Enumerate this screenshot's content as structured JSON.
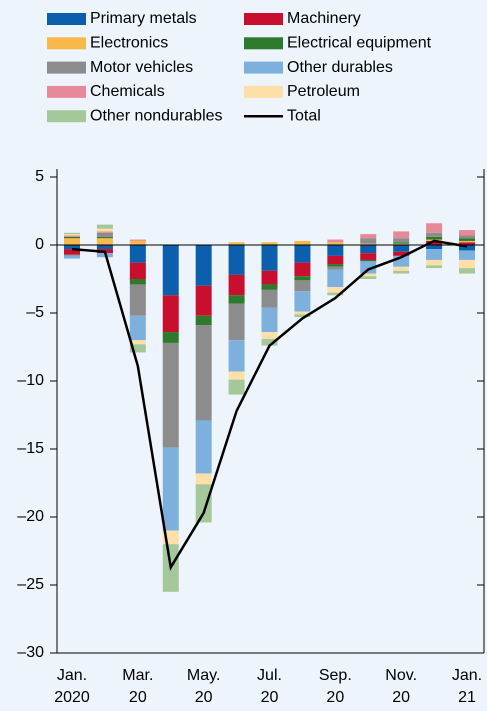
{
  "chart_data": {
    "type": "bar",
    "stacked": true,
    "categories": [
      [
        "Jan.",
        "2020"
      ],
      null,
      [
        "Mar.",
        "20"
      ],
      null,
      [
        "May.",
        "20"
      ],
      null,
      [
        "Jul.",
        "20"
      ],
      null,
      [
        "Sep.",
        "20"
      ],
      null,
      [
        "Nov.",
        "20"
      ],
      null,
      [
        "Jan.",
        "21"
      ]
    ],
    "ylim": [
      -30,
      5
    ],
    "yticks": [
      5,
      0,
      {
        "value": -5,
        "label": "–5"
      },
      {
        "value": -10,
        "label": "–10"
      },
      {
        "value": -15,
        "label": "–15"
      },
      {
        "value": -20,
        "label": "–20"
      },
      {
        "value": -25,
        "label": "–25"
      },
      {
        "value": -30,
        "label": "–30"
      }
    ],
    "series": [
      {
        "name": "Primary metals",
        "color": "#0b5fad",
        "values": [
          -0.3,
          -0.3,
          -1.3,
          -3.7,
          -3.0,
          -2.2,
          -1.9,
          -1.3,
          -0.8,
          -0.6,
          -0.5,
          -0.3,
          -0.4
        ]
      },
      {
        "name": "Machinery",
        "color": "#c8102e",
        "values": [
          -0.4,
          -0.3,
          -1.2,
          -2.7,
          -2.2,
          -1.5,
          -1.0,
          -1.0,
          -0.6,
          -0.5,
          -0.3,
          0.3,
          0.2
        ]
      },
      {
        "name": "Electronics",
        "color": "#f8b84a",
        "values": [
          0.5,
          0.5,
          0.3,
          0,
          0,
          0.2,
          0.2,
          0.3,
          0.2,
          0.1,
          0.1,
          0.1,
          0.1
        ]
      },
      {
        "name": "Electrical equipment",
        "color": "#2d7a2d",
        "values": [
          0.1,
          0.1,
          -0.4,
          -0.8,
          -0.7,
          -0.6,
          -0.4,
          -0.3,
          -0.2,
          -0.1,
          0.1,
          0.2,
          0.2
        ]
      },
      {
        "name": "Motor vehicles",
        "color": "#8c8c8c",
        "values": [
          -0.1,
          0.3,
          -2.3,
          -7.7,
          -7.0,
          -2.7,
          -1.3,
          -0.8,
          -0.2,
          0.4,
          0.3,
          0.3,
          0.2
        ]
      },
      {
        "name": "Other durables",
        "color": "#7eb0de",
        "values": [
          -0.2,
          -0.3,
          -1.8,
          -6.1,
          -3.9,
          -2.3,
          -1.8,
          -1.5,
          -1.3,
          -0.9,
          -0.8,
          -0.8,
          -0.7
        ]
      },
      {
        "name": "Chemicals",
        "color": "#e68a99",
        "values": [
          0.1,
          0.1,
          0.1,
          0,
          0,
          0,
          0,
          0,
          0.2,
          0.3,
          0.5,
          0.7,
          0.4
        ]
      },
      {
        "name": "Petroleum",
        "color": "#fde0a8",
        "values": [
          0.1,
          0.2,
          -0.3,
          -1.0,
          -0.8,
          -0.6,
          -0.5,
          -0.2,
          -0.4,
          -0.2,
          -0.3,
          -0.4,
          -0.6
        ]
      },
      {
        "name": "Other nondurables",
        "color": "#a4c89a",
        "values": [
          0.1,
          0.3,
          -0.6,
          -3.5,
          -2.8,
          -1.1,
          -0.5,
          -0.2,
          -0.2,
          -0.2,
          -0.2,
          -0.2,
          -0.4
        ]
      },
      {
        "name": "Total",
        "type": "line",
        "color": "#000000",
        "values": [
          -0.3,
          -0.5,
          -8.9,
          -23.7,
          -19.7,
          -12.2,
          -7.4,
          -5.4,
          -3.9,
          -1.8,
          -0.9,
          0.3,
          -0.1
        ]
      }
    ]
  }
}
